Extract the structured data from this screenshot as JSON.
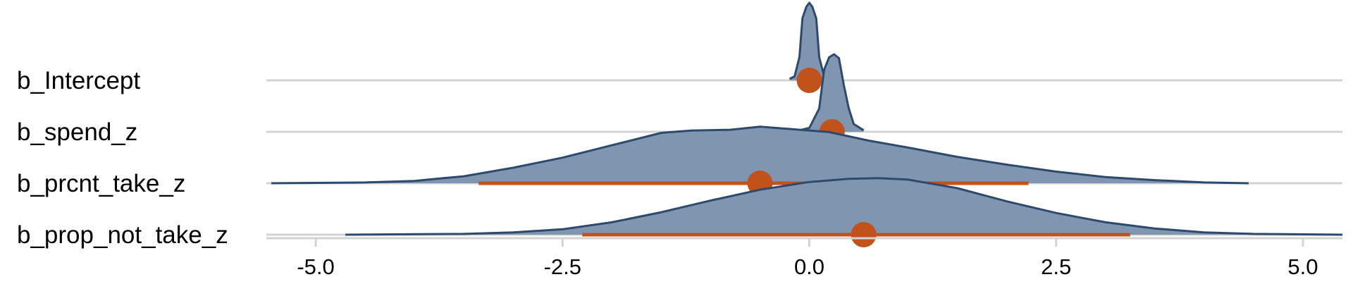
{
  "chart_data": {
    "type": "ridgeline",
    "title": "",
    "xlabel": "",
    "ylabel": "",
    "xlim": [
      -5.5,
      5.4
    ],
    "xticks": [
      "-5.0",
      "-2.5",
      "0.0",
      "2.5",
      "5.0"
    ],
    "xtick_values": [
      -5,
      -2.5,
      0,
      2.5,
      5
    ],
    "grid": "horizontal lines at each parameter",
    "colors": {
      "density_fill": "#8096b0",
      "density_line": "#2d4a6e",
      "interval": "#c2521b",
      "grid": "#d3d3d3"
    },
    "series": [
      {
        "name": "b_Intercept",
        "point": 0.0,
        "interval": [
          -0.03,
          0.03
        ],
        "density": [
          [
            -0.2,
            0.02
          ],
          [
            -0.15,
            0.05
          ],
          [
            -0.1,
            0.3
          ],
          [
            -0.07,
            0.8
          ],
          [
            -0.03,
            0.95
          ],
          [
            0.0,
            1.0
          ],
          [
            0.03,
            0.95
          ],
          [
            0.07,
            0.8
          ],
          [
            0.1,
            0.3
          ],
          [
            0.15,
            0.05
          ],
          [
            0.2,
            0.02
          ]
        ]
      },
      {
        "name": "b_spend_z",
        "point": 0.23,
        "interval": [
          0.2,
          0.26
        ],
        "density": [
          [
            -0.1,
            0.02
          ],
          [
            0.0,
            0.05
          ],
          [
            0.1,
            0.3
          ],
          [
            0.15,
            0.8
          ],
          [
            0.2,
            0.96
          ],
          [
            0.25,
            1.0
          ],
          [
            0.3,
            0.95
          ],
          [
            0.35,
            0.6
          ],
          [
            0.4,
            0.3
          ],
          [
            0.45,
            0.1
          ],
          [
            0.55,
            0.02
          ]
        ]
      },
      {
        "name": "b_prcnt_take_z",
        "point": -0.5,
        "interval": [
          -3.35,
          2.22
        ],
        "density": [
          [
            -5.45,
            0.0
          ],
          [
            -4.5,
            0.01
          ],
          [
            -4.0,
            0.03
          ],
          [
            -3.5,
            0.09
          ],
          [
            -3.0,
            0.2
          ],
          [
            -2.5,
            0.33
          ],
          [
            -2.0,
            0.49
          ],
          [
            -1.5,
            0.65
          ],
          [
            -1.2,
            0.68
          ],
          [
            -0.8,
            0.69
          ],
          [
            -0.5,
            0.73
          ],
          [
            -0.2,
            0.7
          ],
          [
            0.2,
            0.66
          ],
          [
            0.6,
            0.55
          ],
          [
            1.0,
            0.46
          ],
          [
            1.5,
            0.34
          ],
          [
            2.0,
            0.24
          ],
          [
            2.5,
            0.15
          ],
          [
            3.0,
            0.08
          ],
          [
            3.5,
            0.04
          ],
          [
            4.0,
            0.01
          ],
          [
            4.45,
            0.0
          ]
        ]
      },
      {
        "name": "b_prop_not_take_z",
        "point": 0.55,
        "interval": [
          -2.3,
          3.25
        ],
        "density": [
          [
            -4.7,
            0.0
          ],
          [
            -3.5,
            0.01
          ],
          [
            -3.0,
            0.03
          ],
          [
            -2.5,
            0.07
          ],
          [
            -2.0,
            0.16
          ],
          [
            -1.5,
            0.29
          ],
          [
            -1.0,
            0.44
          ],
          [
            -0.5,
            0.58
          ],
          [
            0.0,
            0.68
          ],
          [
            0.4,
            0.72
          ],
          [
            0.7,
            0.73
          ],
          [
            1.0,
            0.71
          ],
          [
            1.5,
            0.6
          ],
          [
            2.0,
            0.43
          ],
          [
            2.5,
            0.28
          ],
          [
            3.0,
            0.16
          ],
          [
            3.5,
            0.08
          ],
          [
            4.0,
            0.03
          ],
          [
            4.5,
            0.01
          ],
          [
            5.4,
            0.0
          ]
        ]
      }
    ]
  }
}
